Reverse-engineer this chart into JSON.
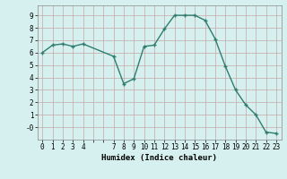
{
  "x": [
    0,
    1,
    2,
    3,
    4,
    7,
    8,
    9,
    10,
    11,
    12,
    13,
    14,
    15,
    16,
    17,
    18,
    19,
    20,
    21,
    22,
    23
  ],
  "y": [
    6.0,
    6.6,
    6.7,
    6.5,
    6.7,
    5.7,
    3.5,
    3.9,
    6.5,
    6.6,
    7.9,
    9.0,
    9.0,
    9.0,
    8.6,
    7.1,
    4.9,
    3.0,
    1.8,
    1.0,
    -0.4,
    -0.5
  ],
  "line_color": "#2e7d6e",
  "marker_color": "#2e7d6e",
  "bg_color": "#d6f0ef",
  "grid_color_major": "#c8a8a8",
  "grid_color_minor": "#e0cccc",
  "xlabel": "Humidex (Indice chaleur)",
  "xlim": [
    -0.5,
    23.5
  ],
  "ylim": [
    -1.0,
    9.8
  ],
  "yticks": [
    0,
    1,
    2,
    3,
    4,
    5,
    6,
    7,
    8,
    9
  ],
  "ytick_labels": [
    "-0",
    "1",
    "2",
    "3",
    "4",
    "5",
    "6",
    "7",
    "8",
    "9"
  ],
  "xticks": [
    0,
    1,
    2,
    3,
    4,
    5,
    6,
    7,
    8,
    9,
    10,
    11,
    12,
    13,
    14,
    15,
    16,
    17,
    18,
    19,
    20,
    21,
    22,
    23
  ],
  "xtick_labels": [
    "0",
    "1",
    "2",
    "3",
    "4",
    "",
    "",
    "7",
    "8",
    "9",
    "10",
    "11",
    "12",
    "13",
    "14",
    "15",
    "16",
    "17",
    "18",
    "19",
    "20",
    "21",
    "22",
    "23"
  ],
  "tick_fontsize": 5.5,
  "label_fontsize": 6.5
}
